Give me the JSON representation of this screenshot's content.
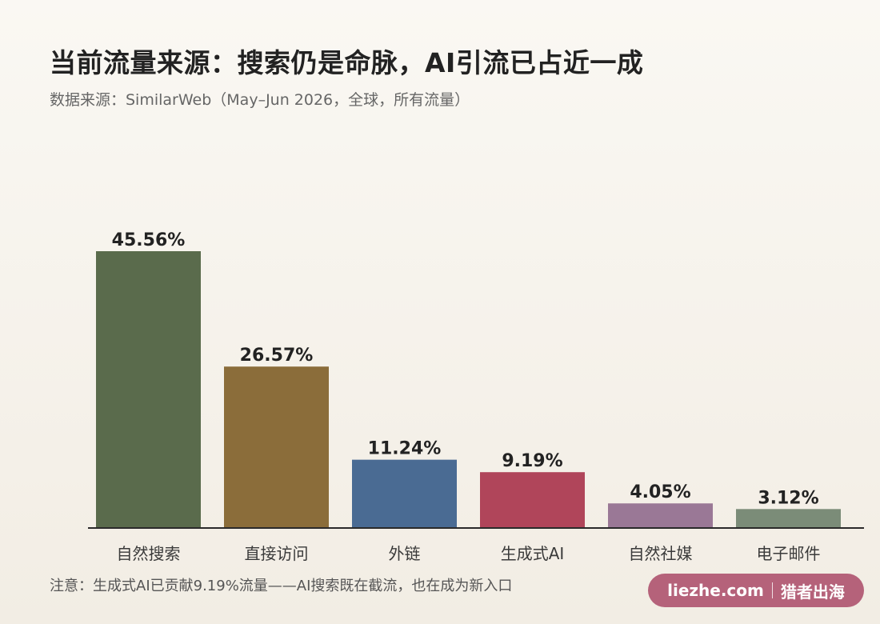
{
  "title": "当前流量来源：搜索仍是命脉，AI引流已占近一成",
  "subtitle": "数据来源：SimilarWeb（May–Jun 2026，全球，所有流量）",
  "footnote": "注意：生成式AI已贡献9.19%流量——AI搜索既在截流，也在成为新入口",
  "brand": {
    "site": "liezhe.com",
    "name": "猎者出海",
    "color": "#b5627a"
  },
  "chart_data": {
    "type": "bar",
    "categories": [
      "自然搜索",
      "直接访问",
      "外链",
      "生成式AI",
      "自然社媒",
      "电子邮件"
    ],
    "values": [
      45.56,
      26.57,
      11.24,
      9.19,
      4.05,
      3.12
    ],
    "value_labels": [
      "45.56%",
      "26.57%",
      "11.24%",
      "9.19%",
      "4.05%",
      "3.12%"
    ],
    "colors": [
      "#5a6b4c",
      "#8b6d3a",
      "#4a6b93",
      "#b0455a",
      "#9a7896",
      "#7b8c78"
    ],
    "title": "当前流量来源：搜索仍是命脉，AI引流已占近一成",
    "xlabel": "",
    "ylabel": "",
    "ylim": [
      0,
      45.56
    ],
    "grid": false,
    "legend": "none"
  }
}
